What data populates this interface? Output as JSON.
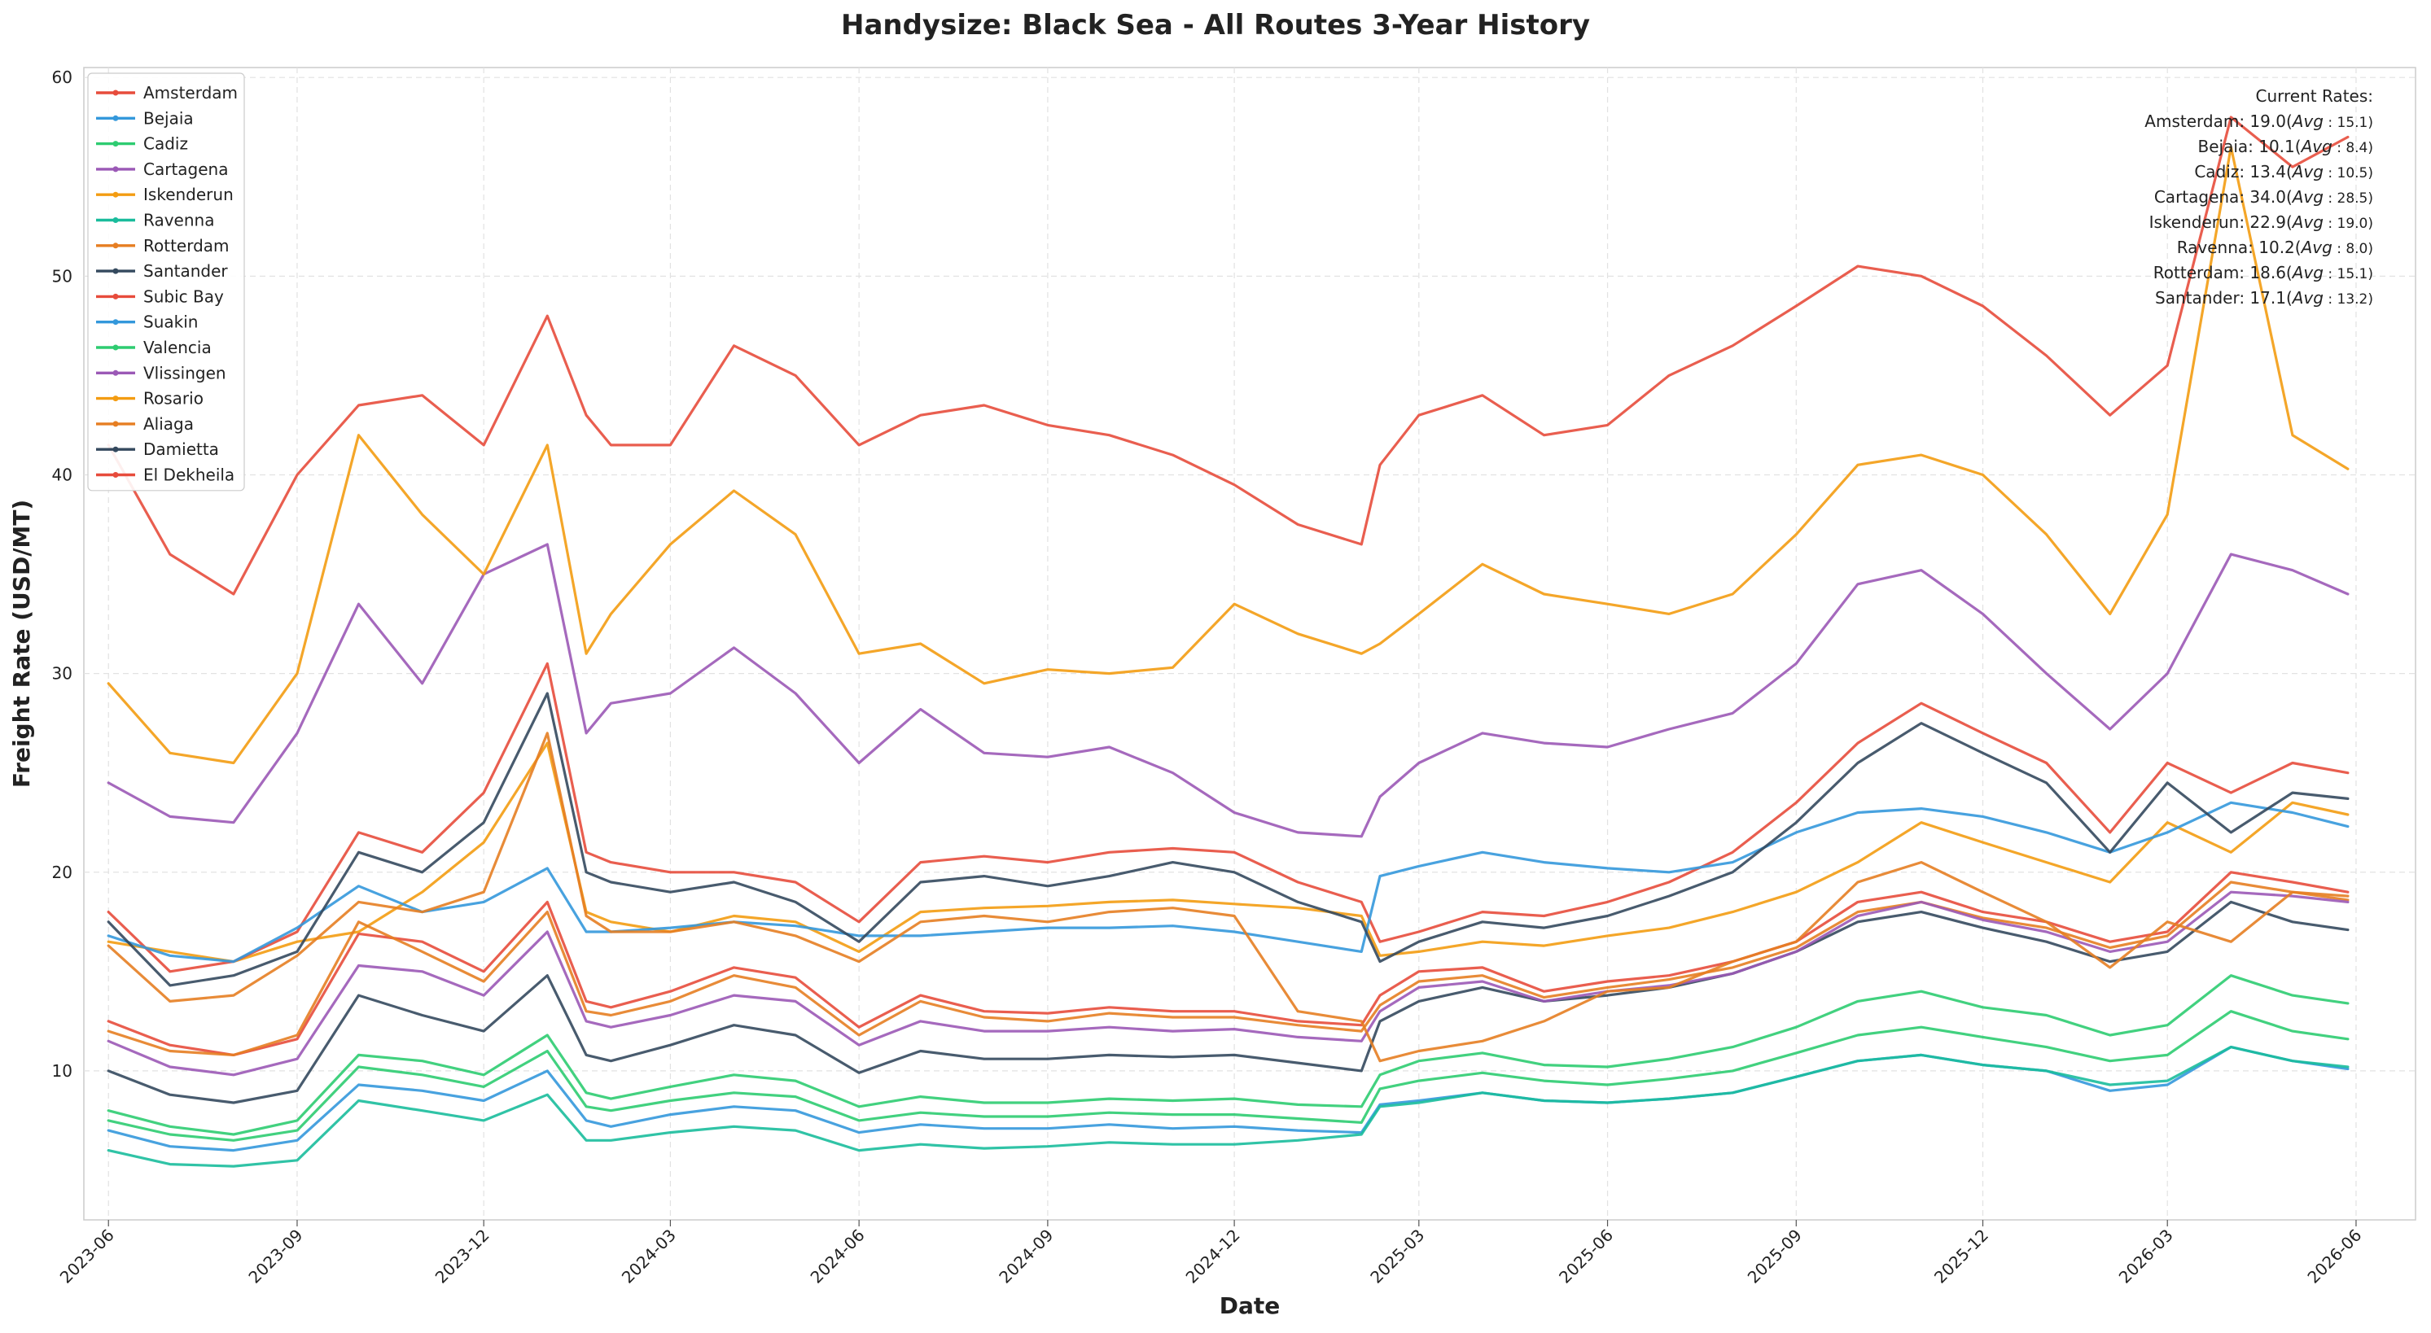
{
  "chart_data": {
    "type": "line",
    "title": "Handysize: Black Sea - All Routes 3-Year History",
    "xlabel": "Date",
    "ylabel": "Freight Rate (USD/MT)",
    "ylim": [
      2.5,
      60.5
    ],
    "yticks": [
      10,
      20,
      30,
      40,
      50,
      60
    ],
    "xlim": [
      "2023-05-20",
      "2026-06-30"
    ],
    "xticks": [
      "2023-06",
      "2023-09",
      "2023-12",
      "2024-03",
      "2024-06",
      "2024-09",
      "2024-12",
      "2025-03",
      "2025-06",
      "2025-09",
      "2025-12",
      "2026-03",
      "2026-06"
    ],
    "grid": true,
    "legend_position": "upper-left",
    "x_dates": [
      "2023-06-01",
      "2023-07-01",
      "2023-08-01",
      "2023-09-01",
      "2023-10-01",
      "2023-11-01",
      "2023-12-01",
      "2024-01-01",
      "2024-01-20",
      "2024-02-01",
      "2024-03-01",
      "2024-04-01",
      "2024-05-01",
      "2024-06-01",
      "2024-07-01",
      "2024-08-01",
      "2024-09-01",
      "2024-10-01",
      "2024-11-01",
      "2024-12-01",
      "2025-01-01",
      "2025-02-01",
      "2025-02-10",
      "2025-03-01",
      "2025-04-01",
      "2025-05-01",
      "2025-06-01",
      "2025-07-01",
      "2025-08-01",
      "2025-09-01",
      "2025-10-01",
      "2025-11-01",
      "2025-12-01",
      "2026-01-01",
      "2026-02-01",
      "2026-03-01",
      "2026-04-01",
      "2026-05-01",
      "2026-05-28"
    ],
    "series": [
      {
        "name": "Amsterdam",
        "color": "#e74c3c",
        "values": [
          12.5,
          11.3,
          10.8,
          11.6,
          16.9,
          16.5,
          15.0,
          18.5,
          13.5,
          13.2,
          14.0,
          15.2,
          14.7,
          12.2,
          13.8,
          13.0,
          12.9,
          13.2,
          13.0,
          13.0,
          12.5,
          12.3,
          13.8,
          15.0,
          15.2,
          14.0,
          14.5,
          14.8,
          15.5,
          16.5,
          18.5,
          19.0,
          18.0,
          17.5,
          16.5,
          17.0,
          20.0,
          19.5,
          19.0
        ]
      },
      {
        "name": "Bejaia",
        "color": "#3498db",
        "values": [
          7.0,
          6.2,
          6.0,
          6.5,
          9.3,
          9.0,
          8.5,
          10.0,
          7.5,
          7.2,
          7.8,
          8.2,
          8.0,
          6.9,
          7.3,
          7.1,
          7.1,
          7.3,
          7.1,
          7.2,
          7.0,
          6.9,
          8.3,
          8.5,
          8.9,
          8.5,
          8.4,
          8.6,
          8.9,
          9.7,
          10.5,
          10.8,
          10.3,
          10.0,
          9.0,
          9.3,
          11.2,
          10.5,
          10.1
        ]
      },
      {
        "name": "Cadiz",
        "color": "#2ecc71",
        "values": [
          8.0,
          7.2,
          6.8,
          7.5,
          10.8,
          10.5,
          9.8,
          11.8,
          8.9,
          8.6,
          9.2,
          9.8,
          9.5,
          8.2,
          8.7,
          8.4,
          8.4,
          8.6,
          8.5,
          8.6,
          8.3,
          8.2,
          9.8,
          10.5,
          10.9,
          10.3,
          10.2,
          10.6,
          11.2,
          12.2,
          13.5,
          14.0,
          13.2,
          12.8,
          11.8,
          12.3,
          14.8,
          13.8,
          13.4
        ]
      },
      {
        "name": "Cartagena",
        "color": "#9b59b6",
        "values": [
          24.5,
          22.8,
          22.5,
          27.0,
          33.5,
          29.5,
          35.0,
          36.5,
          27.0,
          28.5,
          29.0,
          31.3,
          29.0,
          25.5,
          28.2,
          26.0,
          25.8,
          26.3,
          25.0,
          23.0,
          22.0,
          21.8,
          23.8,
          25.5,
          27.0,
          26.5,
          26.3,
          27.2,
          28.0,
          30.5,
          34.5,
          35.2,
          33.0,
          30.0,
          27.2,
          30.0,
          36.0,
          35.2,
          34.0
        ]
      },
      {
        "name": "Iskenderun",
        "color": "#f39c12",
        "values": [
          16.5,
          16.0,
          15.5,
          16.5,
          17.0,
          19.0,
          21.5,
          26.5,
          18.0,
          17.5,
          17.0,
          17.8,
          17.5,
          16.0,
          18.0,
          18.2,
          18.3,
          18.5,
          18.6,
          18.4,
          18.2,
          17.8,
          15.8,
          16.0,
          16.5,
          16.3,
          16.8,
          17.2,
          18.0,
          19.0,
          20.5,
          22.5,
          21.5,
          20.5,
          19.5,
          22.5,
          21.0,
          23.5,
          22.9
        ]
      },
      {
        "name": "Ravenna",
        "color": "#1abc9c",
        "values": [
          6.0,
          5.3,
          5.2,
          5.5,
          8.5,
          8.0,
          7.5,
          8.8,
          6.5,
          6.5,
          6.9,
          7.2,
          7.0,
          6.0,
          6.3,
          6.1,
          6.2,
          6.4,
          6.3,
          6.3,
          6.5,
          6.8,
          8.2,
          8.4,
          8.9,
          8.5,
          8.4,
          8.6,
          8.9,
          9.7,
          10.5,
          10.8,
          10.3,
          10.0,
          9.3,
          9.5,
          11.2,
          10.5,
          10.2
        ]
      },
      {
        "name": "Rotterdam",
        "color": "#e67e22",
        "values": [
          12.0,
          11.0,
          10.8,
          11.8,
          17.5,
          16.0,
          14.5,
          18.0,
          13.0,
          12.8,
          13.5,
          14.8,
          14.2,
          11.8,
          13.5,
          12.7,
          12.5,
          12.9,
          12.7,
          12.7,
          12.3,
          12.0,
          13.3,
          14.5,
          14.8,
          13.7,
          14.2,
          14.6,
          15.2,
          16.2,
          18.0,
          18.5,
          17.7,
          17.2,
          16.2,
          16.8,
          19.5,
          19.0,
          18.6
        ]
      },
      {
        "name": "Santander",
        "color": "#34495e",
        "values": [
          10.0,
          8.8,
          8.4,
          9.0,
          13.8,
          12.8,
          12.0,
          14.8,
          10.8,
          10.5,
          11.3,
          12.3,
          11.8,
          9.9,
          11.0,
          10.6,
          10.6,
          10.8,
          10.7,
          10.8,
          10.4,
          10.0,
          12.5,
          13.5,
          14.2,
          13.5,
          13.8,
          14.2,
          14.9,
          16.0,
          17.5,
          18.0,
          17.2,
          16.5,
          15.5,
          16.0,
          18.5,
          17.5,
          17.1
        ]
      },
      {
        "name": "Subic Bay",
        "color": "#e74c3c",
        "values": [
          18.0,
          15.0,
          15.5,
          17.0,
          22.0,
          21.0,
          24.0,
          30.5,
          21.0,
          20.5,
          20.0,
          20.0,
          19.5,
          17.5,
          20.5,
          20.8,
          20.5,
          21.0,
          21.2,
          21.0,
          19.5,
          18.5,
          16.5,
          17.0,
          18.0,
          17.8,
          18.5,
          19.5,
          21.0,
          23.5,
          26.5,
          28.5,
          27.0,
          25.5,
          22.0,
          25.5,
          24.0,
          25.5,
          25.0
        ]
      },
      {
        "name": "Suakin",
        "color": "#3498db",
        "values": [
          16.8,
          15.8,
          15.5,
          17.2,
          19.3,
          18.0,
          18.5,
          20.2,
          17.0,
          17.0,
          17.2,
          17.5,
          17.3,
          16.8,
          16.8,
          17.0,
          17.2,
          17.2,
          17.3,
          17.0,
          16.5,
          16.0,
          19.8,
          20.3,
          21.0,
          20.5,
          20.2,
          20.0,
          20.5,
          22.0,
          23.0,
          23.2,
          22.8,
          22.0,
          21.0,
          22.0,
          23.5,
          23.0,
          22.3
        ]
      },
      {
        "name": "Valencia",
        "color": "#2ecc71",
        "values": [
          7.5,
          6.8,
          6.5,
          7.0,
          10.2,
          9.8,
          9.2,
          11.0,
          8.2,
          8.0,
          8.5,
          8.9,
          8.7,
          7.5,
          7.9,
          7.7,
          7.7,
          7.9,
          7.8,
          7.8,
          7.6,
          7.4,
          9.1,
          9.5,
          9.9,
          9.5,
          9.3,
          9.6,
          10.0,
          10.9,
          11.8,
          12.2,
          11.7,
          11.2,
          10.5,
          10.8,
          13.0,
          12.0,
          11.6
        ]
      },
      {
        "name": "Vlissingen",
        "color": "#9b59b6",
        "values": [
          11.5,
          10.2,
          9.8,
          10.6,
          15.3,
          15.0,
          13.8,
          17.0,
          12.5,
          12.2,
          12.8,
          13.8,
          13.5,
          11.3,
          12.5,
          12.0,
          12.0,
          12.2,
          12.0,
          12.1,
          11.7,
          11.5,
          13.0,
          14.2,
          14.5,
          13.5,
          14.0,
          14.3,
          14.9,
          16.0,
          17.8,
          18.5,
          17.6,
          17.0,
          16.0,
          16.5,
          19.0,
          18.8,
          18.5
        ]
      },
      {
        "name": "Rosario",
        "color": "#f39c12",
        "values": [
          29.5,
          26.0,
          25.5,
          30.0,
          42.0,
          38.0,
          35.0,
          41.5,
          31.0,
          33.0,
          36.5,
          39.2,
          37.0,
          31.0,
          31.5,
          29.5,
          30.2,
          30.0,
          30.3,
          33.5,
          32.0,
          31.0,
          31.5,
          33.0,
          35.5,
          34.0,
          33.5,
          33.0,
          34.0,
          37.0,
          40.5,
          41.0,
          40.0,
          37.0,
          33.0,
          38.0,
          56.5,
          42.0,
          40.3
        ]
      },
      {
        "name": "Aliaga",
        "color": "#e67e22",
        "values": [
          16.3,
          13.5,
          13.8,
          15.8,
          18.5,
          18.0,
          19.0,
          27.0,
          17.8,
          17.0,
          17.0,
          17.5,
          16.8,
          15.5,
          17.5,
          17.8,
          17.5,
          18.0,
          18.2,
          17.8,
          13.0,
          12.5,
          10.5,
          11.0,
          11.5,
          12.5,
          14.0,
          14.2,
          15.5,
          16.5,
          19.5,
          20.5,
          19.0,
          17.5,
          15.2,
          17.5,
          16.5,
          19.0,
          18.8
        ]
      },
      {
        "name": "Damietta",
        "color": "#34495e",
        "values": [
          17.5,
          14.3,
          14.8,
          16.0,
          21.0,
          20.0,
          22.5,
          29.0,
          20.0,
          19.5,
          19.0,
          19.5,
          18.5,
          16.5,
          19.5,
          19.8,
          19.3,
          19.8,
          20.5,
          20.0,
          18.5,
          17.5,
          15.5,
          16.5,
          17.5,
          17.2,
          17.8,
          18.8,
          20.0,
          22.5,
          25.5,
          27.5,
          26.0,
          24.5,
          21.0,
          24.5,
          22.0,
          24.0,
          23.7
        ]
      },
      {
        "name": "El Dekheila",
        "color": "#e74c3c",
        "values": [
          41.5,
          36.0,
          34.0,
          40.0,
          43.5,
          44.0,
          41.5,
          48.0,
          43.0,
          41.5,
          41.5,
          46.5,
          45.0,
          41.5,
          43.0,
          43.5,
          42.5,
          42.0,
          41.0,
          39.5,
          37.5,
          36.5,
          40.5,
          43.0,
          44.0,
          42.0,
          42.5,
          45.0,
          46.5,
          48.5,
          50.5,
          50.0,
          48.5,
          46.0,
          43.0,
          45.5,
          58.0,
          55.5,
          57.0
        ]
      }
    ],
    "annotation": {
      "header": "Current Rates:",
      "lines": [
        {
          "label": "Amsterdam: 19.0(",
          "avg": "Avg",
          "tail": " : 15.1)"
        },
        {
          "label": "Bejaia: 10.1(",
          "avg": "Avg",
          "tail": " : 8.4)"
        },
        {
          "label": "Cadiz: 13.4(",
          "avg": "Avg",
          "tail": " : 10.5)"
        },
        {
          "label": "Cartagena: 34.0(",
          "avg": "Avg",
          "tail": " : 28.5)"
        },
        {
          "label": "Iskenderun: 22.9(",
          "avg": "Avg",
          "tail": " : 19.0)"
        },
        {
          "label": "Ravenna: 10.2(",
          "avg": "Avg",
          "tail": " : 8.0)"
        },
        {
          "label": "Rotterdam: 18.6(",
          "avg": "Avg",
          "tail": " : 15.1)"
        },
        {
          "label": "Santander: 17.1(",
          "avg": "Avg",
          "tail": " : 13.2)"
        }
      ]
    }
  }
}
